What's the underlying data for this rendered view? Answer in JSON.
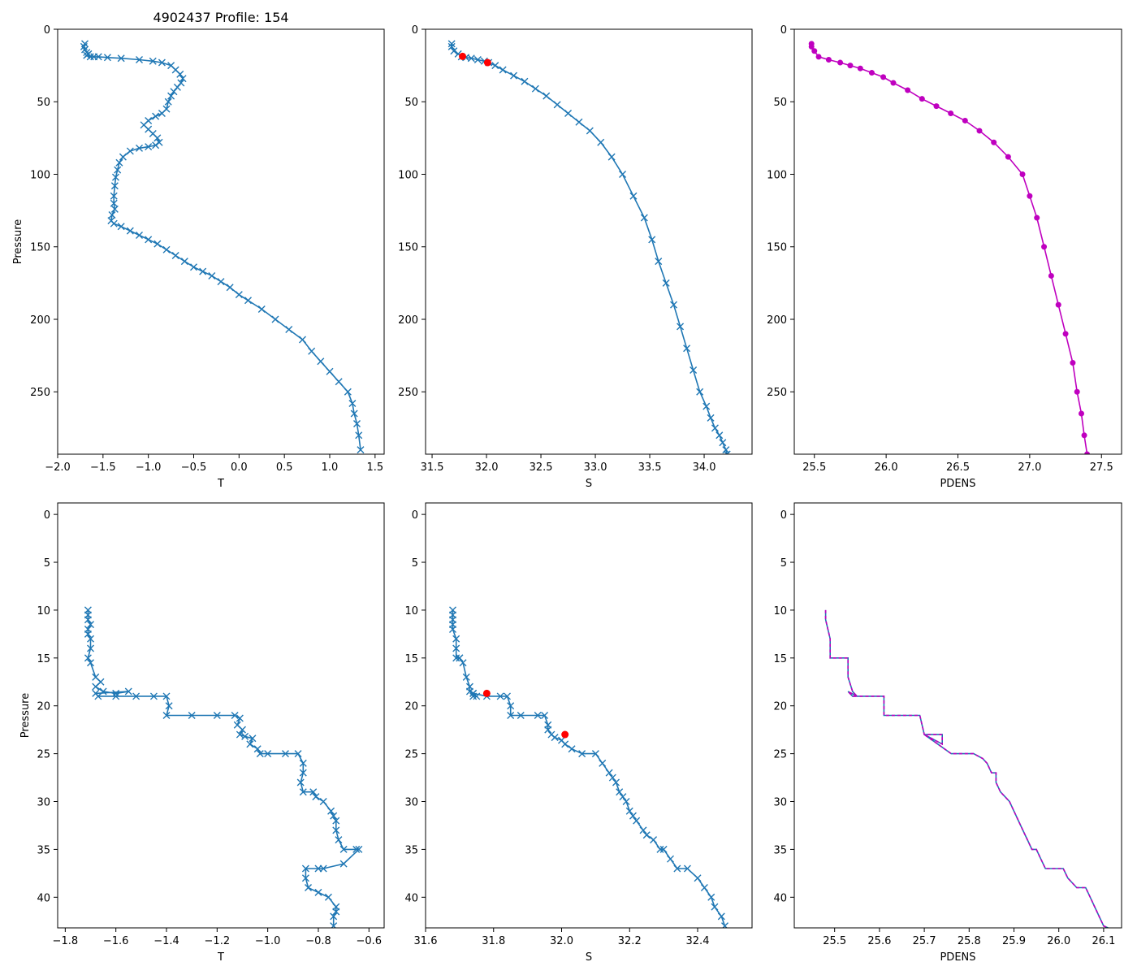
{
  "figure_title": "4902437 Profile: 154",
  "colors": {
    "series": "#1f77b4",
    "density": "#bf00bf",
    "highlight": "#ff0000",
    "axis": "#000000"
  },
  "chart_data": [
    {
      "id": "top-temperature",
      "type": "line",
      "marker": "x",
      "color": "#1f77b4",
      "xlabel": "T",
      "ylabel": "Pressure",
      "xlim": [
        -2.0,
        1.6
      ],
      "ylim": [
        293,
        0
      ],
      "xticks": [
        "-2.0",
        "-1.5",
        "-1.0",
        "-0.5",
        "0.0",
        "0.5",
        "1.0",
        "1.5"
      ],
      "yticks": [
        "0",
        "50",
        "100",
        "150",
        "200",
        "250"
      ],
      "series": [
        {
          "name": "T",
          "x": [
            -1.7,
            -1.71,
            -1.7,
            -1.68,
            -1.66,
            -1.68,
            -1.64,
            -1.6,
            -1.55,
            -1.45,
            -1.3,
            -1.1,
            -0.95,
            -0.85,
            -0.75,
            -0.7,
            -0.65,
            -0.62,
            -0.64,
            -0.68,
            -0.72,
            -0.75,
            -0.78,
            -0.8,
            -0.85,
            -0.92,
            -1.0,
            -1.05,
            -1.0,
            -0.95,
            -0.9,
            -0.88,
            -0.92,
            -1.0,
            -1.1,
            -1.2,
            -1.28,
            -1.32,
            -1.34,
            -1.36,
            -1.37,
            -1.38,
            -1.38,
            -1.37,
            -1.4,
            -1.41,
            -1.38,
            -1.3,
            -1.2,
            -1.1,
            -1.0,
            -0.9,
            -0.8,
            -0.7,
            -0.6,
            -0.5,
            -0.4,
            -0.3,
            -0.2,
            -0.1,
            0.0,
            0.1,
            0.25,
            0.4,
            0.55,
            0.7,
            0.8,
            0.9,
            1.0,
            1.1,
            1.2,
            1.25,
            1.27,
            1.3,
            1.32,
            1.34
          ],
          "y": [
            10,
            12,
            14,
            16,
            17,
            18,
            19,
            19,
            19,
            19.5,
            20,
            21,
            22,
            23,
            25,
            28,
            31,
            34,
            37,
            40,
            43,
            46,
            50,
            55,
            58,
            60,
            63,
            66,
            69,
            72,
            75,
            78,
            80,
            81,
            82,
            84,
            88,
            92,
            97,
            102,
            108,
            115,
            120,
            124,
            128,
            132,
            134,
            136,
            139,
            142,
            145,
            148,
            152,
            156,
            160,
            164,
            167,
            170,
            174,
            178,
            183,
            187,
            193,
            200,
            207,
            214,
            222,
            229,
            236,
            243,
            250,
            258,
            265,
            272,
            280,
            290
          ]
        }
      ]
    },
    {
      "id": "top-salinity",
      "type": "line",
      "marker": "x",
      "color": "#1f77b4",
      "xlabel": "S",
      "ylabel": "",
      "xlim": [
        31.44,
        34.44
      ],
      "ylim": [
        293,
        0
      ],
      "xticks": [
        "31.5",
        "32.0",
        "32.5",
        "33.0",
        "33.5",
        "34.0"
      ],
      "yticks": [
        "0",
        "50",
        "100",
        "150",
        "200",
        "250"
      ],
      "series": [
        {
          "name": "S",
          "x": [
            31.68,
            31.68,
            31.7,
            31.74,
            31.77,
            31.81,
            31.86,
            31.92,
            31.98,
            32.02,
            32.08,
            32.15,
            32.25,
            32.35,
            32.45,
            32.55,
            32.65,
            32.75,
            32.85,
            32.95,
            33.05,
            33.15,
            33.25,
            33.35,
            33.45,
            33.52,
            33.58,
            33.65,
            33.72,
            33.78,
            33.84,
            33.9,
            33.96,
            34.02,
            34.06,
            34.1,
            34.14,
            34.17,
            34.2,
            34.21
          ],
          "y": [
            10,
            12,
            15,
            17,
            19,
            19.5,
            20,
            21,
            22,
            23,
            25,
            28,
            32,
            36,
            41,
            46,
            52,
            58,
            64,
            70,
            78,
            88,
            100,
            115,
            130,
            145,
            160,
            175,
            190,
            205,
            220,
            235,
            250,
            260,
            268,
            275,
            280,
            285,
            290,
            293
          ]
        }
      ],
      "highlights": [
        {
          "x": 31.78,
          "y": 18.7
        },
        {
          "x": 32.01,
          "y": 23.0
        }
      ]
    },
    {
      "id": "top-density",
      "type": "line",
      "marker": "o",
      "color": "#bf00bf",
      "xlabel": "PDENS",
      "ylabel": "",
      "xlim": [
        25.36,
        27.64
      ],
      "ylim": [
        293,
        0
      ],
      "xticks": [
        "25.5",
        "26.0",
        "26.5",
        "27.0",
        "27.5"
      ],
      "yticks": [
        "0",
        "50",
        "100",
        "150",
        "200",
        "250"
      ],
      "series": [
        {
          "name": "PDENS",
          "x": [
            25.48,
            25.48,
            25.5,
            25.53,
            25.6,
            25.68,
            25.75,
            25.82,
            25.9,
            25.98,
            26.05,
            26.15,
            26.25,
            26.35,
            26.45,
            26.55,
            26.65,
            26.75,
            26.85,
            26.95,
            27.0,
            27.05,
            27.1,
            27.15,
            27.2,
            27.25,
            27.3,
            27.33,
            27.36,
            27.38,
            27.4
          ],
          "y": [
            10,
            12,
            15,
            19,
            21,
            23,
            25,
            27,
            30,
            33,
            37,
            42,
            48,
            53,
            58,
            63,
            70,
            78,
            88,
            100,
            115,
            130,
            150,
            170,
            190,
            210,
            230,
            250,
            265,
            280,
            293
          ]
        }
      ]
    },
    {
      "id": "bottom-temperature",
      "type": "line",
      "marker": "x",
      "color": "#1f77b4",
      "xlabel": "T",
      "ylabel": "Pressure",
      "xlim": [
        -1.83,
        -0.54
      ],
      "ylim": [
        43.2,
        -1.2
      ],
      "xticks": [
        "-1.8",
        "-1.6",
        "-1.4",
        "-1.2",
        "-1.0",
        "-0.8",
        "-0.6"
      ],
      "yticks": [
        "0",
        "5",
        "10",
        "15",
        "20",
        "25",
        "30",
        "35",
        "40"
      ],
      "series": [
        {
          "name": "T",
          "x": [
            -1.71,
            -1.71,
            -1.71,
            -1.7,
            -1.71,
            -1.71,
            -1.7,
            -1.7,
            -1.71,
            -1.7,
            -1.68,
            -1.66,
            -1.68,
            -1.65,
            -1.6,
            -1.55,
            -1.68,
            -1.67,
            -1.6,
            -1.52,
            -1.45,
            -1.4,
            -1.39,
            -1.4,
            -1.3,
            -1.2,
            -1.13,
            -1.11,
            -1.12,
            -1.1,
            -1.11,
            -1.09,
            -1.06,
            -1.07,
            -1.04,
            -1.03,
            -1.0,
            -0.93,
            -0.88,
            -0.86,
            -0.86,
            -0.87,
            -0.86,
            -0.82,
            -0.81,
            -0.78,
            -0.75,
            -0.74,
            -0.73,
            -0.73,
            -0.72,
            -0.7,
            -0.65,
            -0.64,
            -0.7,
            -0.78,
            -0.8,
            -0.85,
            -0.85,
            -0.84,
            -0.8,
            -0.76,
            -0.73,
            -0.73,
            -0.74,
            -0.74
          ],
          "y": [
            10,
            10.5,
            11,
            11.5,
            12,
            12.5,
            13,
            14,
            15,
            15.5,
            17,
            17.5,
            18,
            18.5,
            18.7,
            18.5,
            18.7,
            19,
            19,
            19,
            19,
            19,
            20,
            21,
            21,
            21,
            21,
            21.3,
            22,
            22.5,
            23,
            23.2,
            23.4,
            24,
            24.5,
            25,
            25,
            25,
            25,
            26,
            27,
            28,
            29,
            29,
            29.5,
            30,
            31,
            31.5,
            32,
            33,
            34,
            35,
            35,
            35,
            36.5,
            37,
            37,
            37,
            38,
            39,
            39.5,
            40,
            41,
            41.5,
            42,
            43
          ]
        }
      ]
    },
    {
      "id": "bottom-salinity",
      "type": "line",
      "marker": "x",
      "color": "#1f77b4",
      "xlabel": "S",
      "ylabel": "",
      "xlim": [
        31.6,
        32.56
      ],
      "ylim": [
        43.2,
        -1.2
      ],
      "xticks": [
        "31.6",
        "31.8",
        "32.0",
        "32.2",
        "32.4"
      ],
      "yticks": [
        "0",
        "5",
        "10",
        "15",
        "20",
        "25",
        "30",
        "35",
        "40"
      ],
      "series": [
        {
          "name": "S",
          "x": [
            31.68,
            31.68,
            31.68,
            31.68,
            31.68,
            31.69,
            31.69,
            31.69,
            31.7,
            31.7,
            31.71,
            31.72,
            31.73,
            31.73,
            31.74,
            31.74,
            31.75,
            31.74,
            31.78,
            31.82,
            31.84,
            31.85,
            31.85,
            31.88,
            31.93,
            31.95,
            31.96,
            31.96,
            31.97,
            31.98,
            32.0,
            32.01,
            32.03,
            32.06,
            32.1,
            32.12,
            32.14,
            32.15,
            32.16,
            32.17,
            32.18,
            32.19,
            32.2,
            32.21,
            32.22,
            32.24,
            32.25,
            32.27,
            32.29,
            32.3,
            32.32,
            32.34,
            32.37,
            32.4,
            32.42,
            32.44,
            32.45,
            32.47,
            32.48
          ],
          "y": [
            10,
            10.5,
            11,
            11.5,
            12,
            13,
            14,
            15,
            15,
            15,
            15.5,
            17,
            18,
            18.5,
            18.7,
            19,
            19,
            18.7,
            19,
            19,
            19,
            20,
            21,
            21,
            21,
            21,
            22,
            22.5,
            23,
            23.3,
            23.6,
            24,
            24.5,
            25,
            25,
            26,
            27,
            27.5,
            28,
            29,
            29.5,
            30,
            31,
            31.5,
            32,
            33,
            33.5,
            34,
            35,
            35,
            36,
            37,
            37,
            38,
            39,
            40,
            41,
            42,
            43
          ]
        }
      ],
      "highlights": [
        {
          "x": 31.78,
          "y": 18.7
        },
        {
          "x": 32.01,
          "y": 23.0
        }
      ]
    },
    {
      "id": "bottom-density",
      "type": "line",
      "marker": "none",
      "color": "#1f77b4",
      "overlay_color": "#bf00bf",
      "xlabel": "PDENS",
      "ylabel": "",
      "xlim": [
        25.41,
        26.14
      ],
      "ylim": [
        43.2,
        -1.2
      ],
      "xticks": [
        "25.5",
        "25.6",
        "25.7",
        "25.8",
        "25.9",
        "26.0",
        "26.1"
      ],
      "yticks": [
        "0",
        "5",
        "10",
        "15",
        "20",
        "25",
        "30",
        "35",
        "40"
      ],
      "series": [
        {
          "name": "PDENS",
          "x": [
            25.48,
            25.48,
            25.49,
            25.49,
            25.53,
            25.53,
            25.54,
            25.55,
            25.54,
            25.53,
            25.55,
            25.58,
            25.61,
            25.61,
            25.64,
            25.67,
            25.69,
            25.7,
            25.73,
            25.74,
            25.74,
            25.7,
            25.73,
            25.76,
            25.79,
            25.81,
            25.83,
            25.84,
            25.85,
            25.86,
            25.86,
            25.87,
            25.88,
            25.89,
            25.9,
            25.91,
            25.92,
            25.93,
            25.94,
            25.95,
            25.96,
            25.97,
            26.01,
            26.02,
            26.04,
            26.06,
            26.07,
            26.08,
            26.09,
            26.1,
            26.11
          ],
          "y": [
            10,
            11,
            13,
            15,
            15,
            17,
            18.5,
            19,
            19,
            18.5,
            19,
            19,
            19,
            21,
            21,
            21,
            21,
            23,
            23,
            23,
            24,
            23,
            24,
            25,
            25,
            25,
            25.5,
            26,
            27,
            27,
            28,
            29,
            29.5,
            30,
            31,
            32,
            33,
            34,
            35,
            35,
            36,
            37,
            37,
            38,
            39,
            39,
            40,
            41,
            42,
            43,
            43.2
          ]
        }
      ]
    }
  ]
}
